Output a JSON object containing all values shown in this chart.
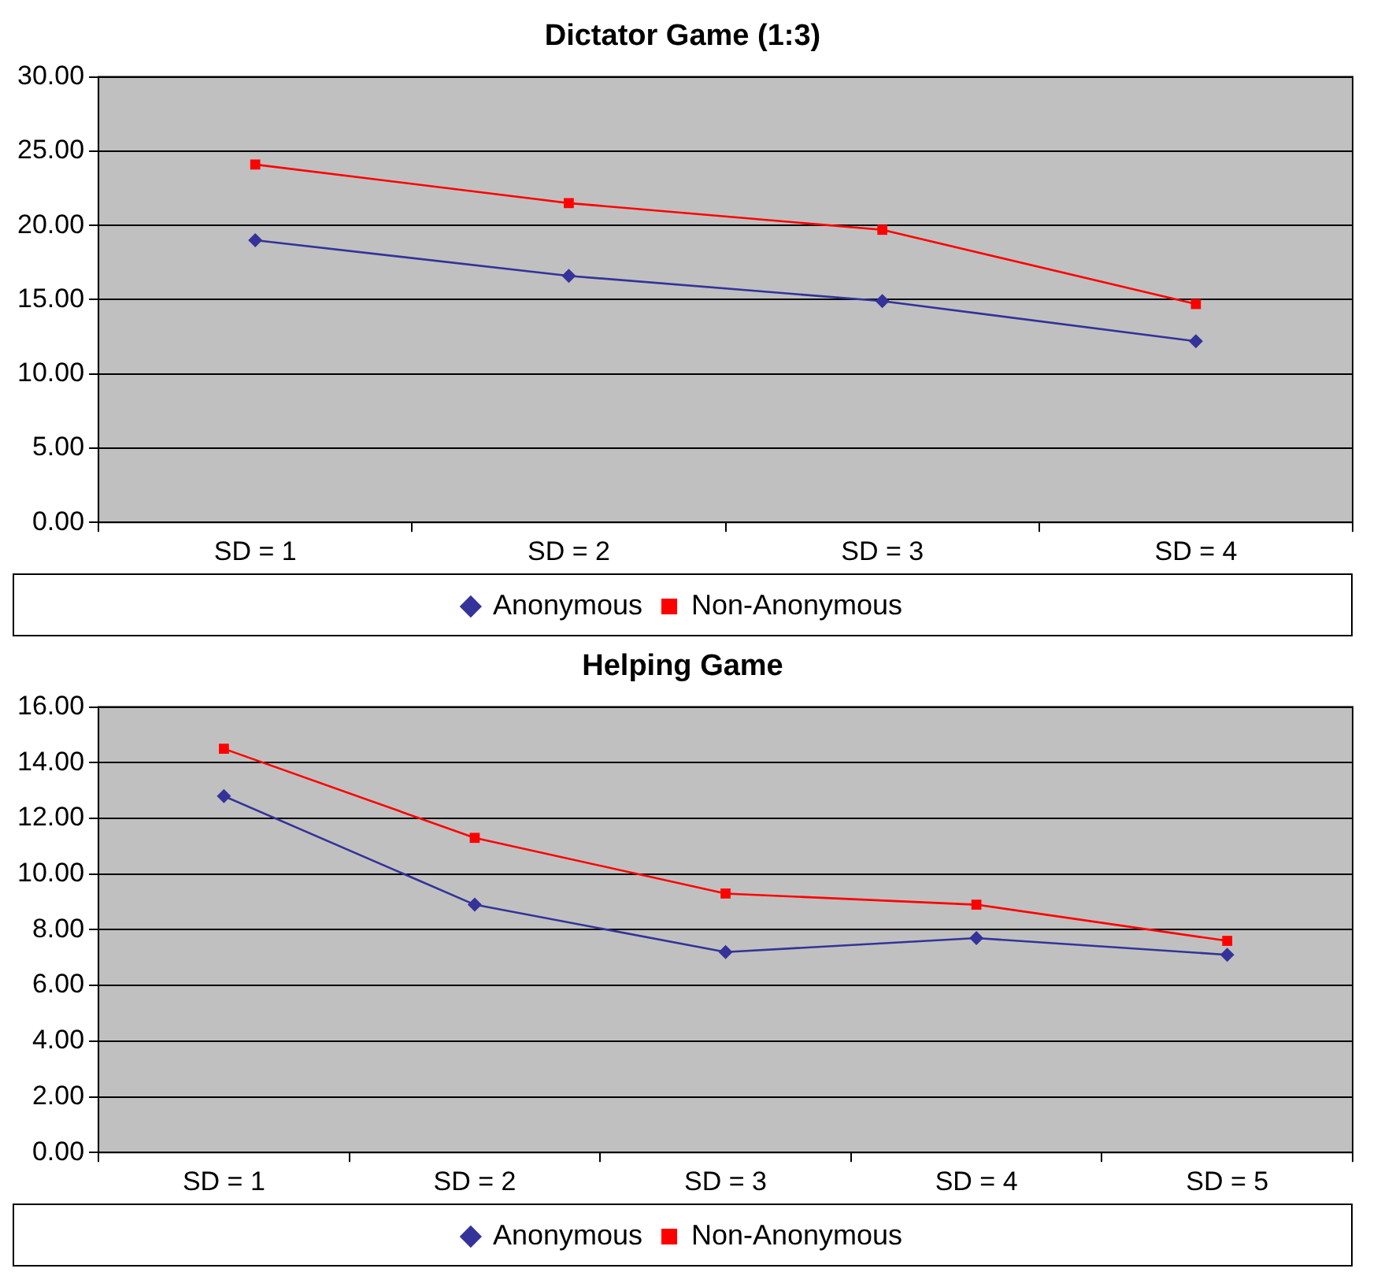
{
  "chart_data": [
    {
      "type": "line",
      "title": "Dictator Game (1:3)",
      "categories": [
        "SD = 1",
        "SD = 2",
        "SD = 3",
        "SD = 4"
      ],
      "series": [
        {
          "name": "Anonymous",
          "color": "#333399",
          "marker": "diamond",
          "values": [
            19.0,
            16.6,
            14.9,
            12.2
          ]
        },
        {
          "name": "Non-Anonymous",
          "color": "#ff0000",
          "marker": "square",
          "values": [
            24.1,
            21.5,
            19.7,
            14.7
          ]
        }
      ],
      "ylim": [
        0,
        30
      ],
      "yticks": [
        {
          "value": 0,
          "label": "0.00"
        },
        {
          "value": 5,
          "label": "5.00"
        },
        {
          "value": 10,
          "label": "10.00"
        },
        {
          "value": 15,
          "label": "15.00"
        },
        {
          "value": 20,
          "label": "20.00"
        },
        {
          "value": 25,
          "label": "25.00"
        },
        {
          "value": 30,
          "label": "30.00"
        }
      ],
      "grid": "y",
      "legend": "bottom"
    },
    {
      "type": "line",
      "title": "Helping Game",
      "categories": [
        "SD = 1",
        "SD = 2",
        "SD = 3",
        "SD = 4",
        "SD = 5"
      ],
      "series": [
        {
          "name": "Anonymous",
          "color": "#333399",
          "marker": "diamond",
          "values": [
            12.8,
            8.9,
            7.2,
            7.7,
            7.1
          ]
        },
        {
          "name": "Non-Anonymous",
          "color": "#ff0000",
          "marker": "square",
          "values": [
            14.5,
            11.3,
            9.3,
            8.9,
            7.6
          ]
        }
      ],
      "ylim": [
        0,
        16
      ],
      "yticks": [
        {
          "value": 0,
          "label": "0.00"
        },
        {
          "value": 2,
          "label": "2.00"
        },
        {
          "value": 4,
          "label": "4.00"
        },
        {
          "value": 6,
          "label": "6.00"
        },
        {
          "value": 8,
          "label": "8.00"
        },
        {
          "value": 10,
          "label": "10.00"
        },
        {
          "value": 12,
          "label": "12.00"
        },
        {
          "value": 14,
          "label": "14.00"
        },
        {
          "value": 16,
          "label": "16.00"
        }
      ],
      "grid": "y",
      "legend": "bottom"
    }
  ]
}
